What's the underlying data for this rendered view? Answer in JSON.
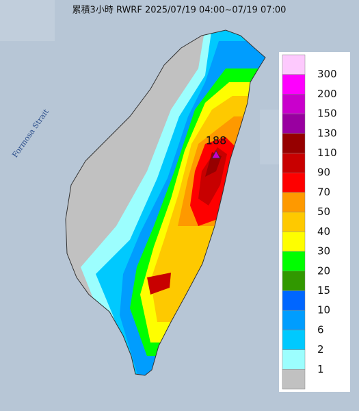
{
  "title": "累積3小時 RWRF 2025/07/19 04:00~07/19 07:00",
  "sea_label": "Formosa Strait",
  "peak_label": "188",
  "legend": {
    "colors": [
      "#fdc9fd",
      "#fe00fe",
      "#c900cc",
      "#9900a0",
      "#960000",
      "#c80000",
      "#fe0000",
      "#fe9900",
      "#fec900",
      "#fefe00",
      "#00fe00",
      "#319800",
      "#0066ff",
      "#009dfe",
      "#00c9fe",
      "#9cfefe",
      "#c1c1c1"
    ],
    "levels": [
      300,
      200,
      150,
      130,
      110,
      90,
      70,
      50,
      40,
      30,
      20,
      15,
      10,
      6,
      2,
      1
    ]
  }
}
